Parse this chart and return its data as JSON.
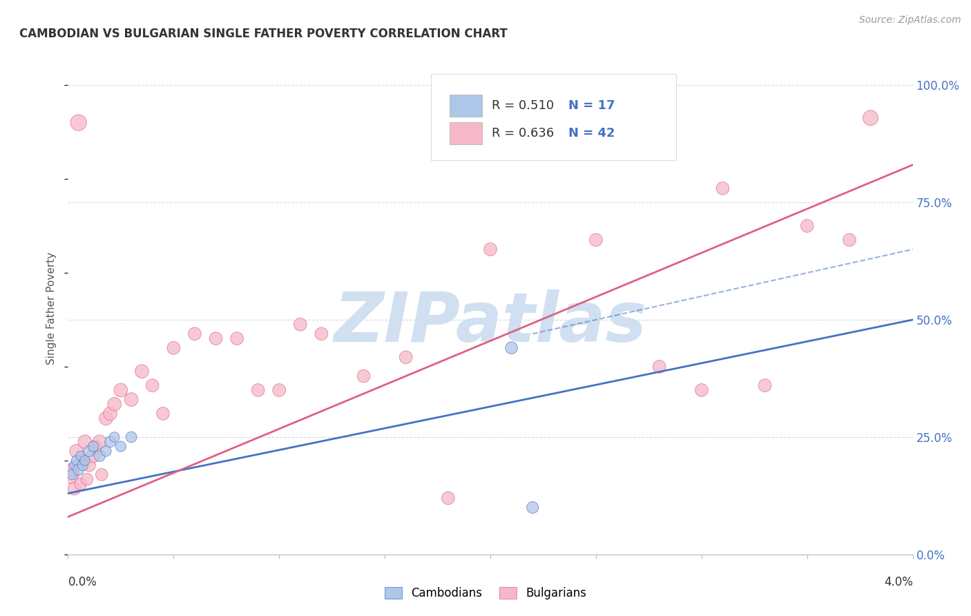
{
  "title": "CAMBODIAN VS BULGARIAN SINGLE FATHER POVERTY CORRELATION CHART",
  "source": "Source: ZipAtlas.com",
  "ylabel": "Single Father Poverty",
  "legend_labels": [
    "Cambodians",
    "Bulgarians"
  ],
  "legend_r": [
    "R = 0.510",
    "R = 0.636"
  ],
  "legend_n": [
    "N = 17",
    "N = 42"
  ],
  "cambodian_color": "#aec6e8",
  "bulgarian_color": "#f5b8c8",
  "cambodian_line_color": "#4472c4",
  "bulgarian_line_color": "#e06080",
  "watermark_text": "ZIPatlas",
  "watermark_color": "#d0e0f0",
  "background_color": "#ffffff",
  "grid_color": "#d8d8d8",
  "ytick_labels": [
    "0.0%",
    "25.0%",
    "50.0%",
    "75.0%",
    "100.0%"
  ],
  "ytick_values": [
    0.0,
    0.25,
    0.5,
    0.75,
    1.0
  ],
  "xmin": 0.0,
  "xmax": 0.04,
  "ymin": 0.0,
  "ymax": 1.05,
  "cambodian_x": [
    0.0002,
    0.0003,
    0.0004,
    0.0005,
    0.0006,
    0.0007,
    0.0008,
    0.001,
    0.0012,
    0.0015,
    0.0018,
    0.002,
    0.0022,
    0.0025,
    0.003,
    0.022,
    0.021
  ],
  "cambodian_y": [
    0.17,
    0.19,
    0.2,
    0.18,
    0.21,
    0.19,
    0.2,
    0.22,
    0.23,
    0.21,
    0.22,
    0.24,
    0.25,
    0.23,
    0.25,
    0.1,
    0.44
  ],
  "cambodian_sizes": [
    120,
    100,
    110,
    130,
    100,
    120,
    110,
    130,
    120,
    140,
    120,
    130,
    110,
    120,
    130,
    150,
    160
  ],
  "bulgarian_x": [
    0.0001,
    0.0002,
    0.0003,
    0.0004,
    0.0005,
    0.0006,
    0.0007,
    0.0008,
    0.0009,
    0.001,
    0.0012,
    0.0013,
    0.0015,
    0.0016,
    0.0018,
    0.002,
    0.0022,
    0.0025,
    0.003,
    0.0035,
    0.004,
    0.0045,
    0.005,
    0.006,
    0.007,
    0.008,
    0.009,
    0.01,
    0.011,
    0.012,
    0.014,
    0.016,
    0.018,
    0.02,
    0.025,
    0.028,
    0.03,
    0.031,
    0.033,
    0.035,
    0.037,
    0.038
  ],
  "bulgarian_y": [
    0.17,
    0.18,
    0.14,
    0.22,
    0.92,
    0.15,
    0.2,
    0.24,
    0.16,
    0.19,
    0.21,
    0.23,
    0.24,
    0.17,
    0.29,
    0.3,
    0.32,
    0.35,
    0.33,
    0.39,
    0.36,
    0.3,
    0.44,
    0.47,
    0.46,
    0.46,
    0.35,
    0.35,
    0.49,
    0.47,
    0.38,
    0.42,
    0.12,
    0.65,
    0.67,
    0.4,
    0.35,
    0.78,
    0.36,
    0.7,
    0.67,
    0.93
  ],
  "bulgarian_sizes": [
    350,
    200,
    180,
    200,
    280,
    160,
    180,
    200,
    160,
    180,
    200,
    180,
    200,
    160,
    200,
    200,
    200,
    200,
    200,
    200,
    180,
    180,
    180,
    180,
    180,
    180,
    180,
    180,
    180,
    180,
    180,
    180,
    180,
    180,
    180,
    180,
    180,
    180,
    180,
    180,
    180,
    250
  ],
  "cam_line_x0": 0.0,
  "cam_line_x1": 0.04,
  "cam_line_y0": 0.13,
  "cam_line_y1": 0.5,
  "bul_line_x0": 0.0,
  "bul_line_x1": 0.04,
  "bul_line_y0": 0.08,
  "bul_line_y1": 0.83,
  "dash_line_x0": 0.022,
  "dash_line_x1": 0.04,
  "dash_line_y0": 0.47,
  "dash_line_y1": 0.65
}
